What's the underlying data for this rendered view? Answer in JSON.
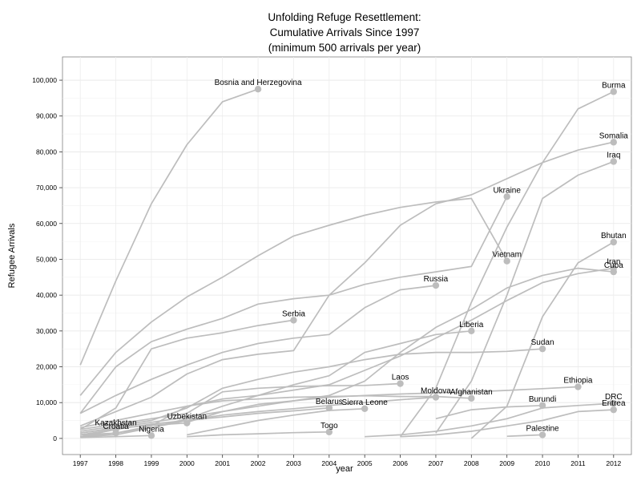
{
  "chart_data": {
    "type": "line",
    "title_lines": [
      "Unfolding Refuge Resettlement:",
      "Cumulative Arrivals Since 1997",
      "(minimum 500 arrivals per year)"
    ],
    "xlabel": "year",
    "ylabel": "Refugee Arrivals",
    "xlim": [
      1996.5,
      2012.5
    ],
    "ylim": [
      -4500,
      106500
    ],
    "x_ticks": [
      1997,
      1998,
      1999,
      2000,
      2001,
      2002,
      2003,
      2004,
      2005,
      2006,
      2007,
      2008,
      2009,
      2010,
      2011,
      2012
    ],
    "y_ticks": [
      0,
      10000,
      20000,
      30000,
      40000,
      50000,
      60000,
      70000,
      80000,
      90000,
      100000
    ],
    "y_tick_labels": [
      "0",
      "10,000",
      "20,000",
      "30,000",
      "40,000",
      "50,000",
      "60,000",
      "70,000",
      "80,000",
      "90,000",
      "100,000"
    ],
    "grid": true,
    "line_color": "#bdbdbd",
    "marker_color": "#bdbdbd",
    "series": [
      {
        "name": "Bosnia and Herzegovina",
        "x": [
          1997,
          1998,
          1999,
          2000,
          2001,
          2002
        ],
        "y": [
          20500,
          44000,
          65500,
          82000,
          94000,
          97500
        ]
      },
      {
        "name": "Burma",
        "x": [
          2006,
          2007,
          2008,
          2009,
          2010,
          2011,
          2012
        ],
        "y": [
          500,
          14000,
          38000,
          59000,
          77000,
          92000,
          96800
        ]
      },
      {
        "name": "Somalia",
        "x": [
          1997,
          1998,
          1999,
          2000,
          2001,
          2002,
          2003,
          2004,
          2005,
          2006,
          2007,
          2008,
          2009,
          2010,
          2011,
          2012
        ],
        "y": [
          3500,
          7500,
          11500,
          18000,
          22000,
          23500,
          24500,
          40000,
          49000,
          59500,
          65500,
          68000,
          72500,
          77000,
          80500,
          82700
        ]
      },
      {
        "name": "Iraq",
        "x": [
          2007,
          2008,
          2009,
          2010,
          2011,
          2012
        ],
        "y": [
          1500,
          16000,
          40000,
          67000,
          73500,
          77300
        ]
      },
      {
        "name": "Ukraine",
        "x": [
          1997,
          1998,
          1999,
          2000,
          2001,
          2002,
          2003,
          2004,
          2005,
          2006,
          2007,
          2008,
          2009
        ],
        "y": [
          7000,
          20000,
          27000,
          30500,
          33500,
          37500,
          39000,
          40000,
          43000,
          45000,
          46500,
          48000,
          67500
        ]
      },
      {
        "name": "Bhutan",
        "x": [
          2008,
          2009,
          2010,
          2011,
          2012
        ],
        "y": [
          0,
          9000,
          34000,
          49000,
          54800
        ]
      },
      {
        "name": "Vietnam",
        "x": [
          1997,
          1998,
          1999,
          2000,
          2001,
          2002,
          2003,
          2004,
          2005,
          2006,
          2007,
          2008,
          2009
        ],
        "y": [
          12000,
          24000,
          32500,
          39500,
          45000,
          51000,
          56500,
          59500,
          62300,
          64500,
          66000,
          67000,
          49500
        ]
      },
      {
        "name": "Iran",
        "x": [
          1997,
          1998,
          1999,
          2000,
          2001,
          2002,
          2003,
          2004,
          2005,
          2006,
          2007,
          2008,
          2009,
          2010,
          2011,
          2012
        ],
        "y": [
          3000,
          5000,
          7000,
          9000,
          11000,
          12000,
          13500,
          15000,
          19000,
          23000,
          28000,
          33000,
          38500,
          43500,
          46000,
          47500
        ]
      },
      {
        "name": "Cuba",
        "x": [
          1997,
          1998,
          1999,
          2000,
          2001,
          2002,
          2003,
          2004,
          2005,
          2006,
          2007,
          2008,
          2009,
          2010,
          2011,
          2012
        ],
        "y": [
          1500,
          3000,
          4500,
          6000,
          7500,
          9000,
          10500,
          12000,
          16000,
          24000,
          31000,
          36000,
          42000,
          45500,
          47500,
          46500
        ]
      },
      {
        "name": "Russia",
        "x": [
          1997,
          1998,
          1999,
          2000,
          2001,
          2002,
          2003,
          2004,
          2005,
          2006,
          2007
        ],
        "y": [
          7000,
          12000,
          16500,
          20500,
          24000,
          26500,
          28000,
          29000,
          36500,
          41500,
          42700
        ]
      },
      {
        "name": "Serbia",
        "x": [
          1997,
          1998,
          1999,
          2000,
          2001,
          2002,
          2003
        ],
        "y": [
          2500,
          8500,
          25000,
          28000,
          29500,
          31500,
          33000
        ]
      },
      {
        "name": "Liberia",
        "x": [
          1997,
          1998,
          1999,
          2000,
          2001,
          2002,
          2003,
          2004,
          2005,
          2006,
          2007,
          2008
        ],
        "y": [
          500,
          1000,
          3000,
          5500,
          9000,
          12000,
          15000,
          17500,
          24000,
          26500,
          29000,
          30000
        ]
      },
      {
        "name": "Sudan",
        "x": [
          1997,
          1998,
          1999,
          2000,
          2001,
          2002,
          2003,
          2004,
          2005,
          2006,
          2007,
          2008,
          2009,
          2010
        ],
        "y": [
          2000,
          3500,
          5000,
          8500,
          14000,
          16500,
          18500,
          20000,
          22000,
          23500,
          24000,
          24000,
          24300,
          25000
        ]
      },
      {
        "name": "Laos",
        "x": [
          1997,
          1998,
          1999,
          2000,
          2001,
          2002,
          2003,
          2004,
          2005,
          2006
        ],
        "y": [
          2500,
          4000,
          5500,
          7000,
          13000,
          14000,
          14500,
          14700,
          14800,
          15300
        ]
      },
      {
        "name": "Ethiopia",
        "x": [
          2000,
          2001,
          2002,
          2003,
          2004,
          2005,
          2006,
          2007,
          2008,
          2009,
          2010,
          2011
        ],
        "y": [
          4500,
          7500,
          9500,
          10500,
          11500,
          12000,
          12400,
          12700,
          13000,
          13400,
          13900,
          14400
        ]
      },
      {
        "name": "Moldova",
        "x": [
          1997,
          1998,
          1999,
          2000,
          2001,
          2002,
          2003,
          2004,
          2005,
          2006,
          2007
        ],
        "y": [
          500,
          1500,
          3000,
          5000,
          6500,
          7500,
          8300,
          9200,
          10000,
          10800,
          11500
        ]
      },
      {
        "name": "Afghanistan",
        "x": [
          1997,
          1998,
          1999,
          2000,
          2001,
          2002,
          2003,
          2004,
          2005,
          2006,
          2007,
          2008
        ],
        "y": [
          500,
          1500,
          3500,
          9000,
          10500,
          11000,
          11500,
          11700,
          11900,
          11700,
          11700,
          11200
        ]
      },
      {
        "name": "Burundi",
        "x": [
          2007,
          2008,
          2009,
          2010
        ],
        "y": [
          5500,
          8000,
          8800,
          9200
        ]
      },
      {
        "name": "DRC",
        "x": [
          2005,
          2006,
          2007,
          2008,
          2009,
          2010,
          2011,
          2012
        ],
        "y": [
          500,
          1000,
          2000,
          3500,
          5500,
          8500,
          9200,
          9800
        ]
      },
      {
        "name": "Eritrea",
        "x": [
          2006,
          2007,
          2008,
          2009,
          2010,
          2011,
          2012
        ],
        "y": [
          500,
          1000,
          2000,
          3500,
          5000,
          7500,
          8000
        ]
      },
      {
        "name": "Belarus",
        "x": [
          1997,
          1998,
          1999,
          2000,
          2001,
          2002,
          2003,
          2004
        ],
        "y": [
          1000,
          2500,
          4000,
          5000,
          6000,
          7000,
          7700,
          8500
        ]
      },
      {
        "name": "Sierra Leone",
        "x": [
          2000,
          2001,
          2002,
          2003,
          2004,
          2005
        ],
        "y": [
          1000,
          3000,
          5000,
          6500,
          7800,
          8300
        ]
      },
      {
        "name": "Uzbekistan",
        "x": [
          1997,
          1998,
          1999,
          2000
        ],
        "y": [
          1500,
          2800,
          3700,
          4300
        ]
      },
      {
        "name": "Kazakhstan",
        "x": [
          1997,
          1998
        ],
        "y": [
          500,
          2500
        ]
      },
      {
        "name": "Croatia",
        "x": [
          1997,
          1998
        ],
        "y": [
          1000,
          1500
        ]
      },
      {
        "name": "Nigeria",
        "x": [
          1997,
          1998,
          1999
        ],
        "y": [
          300,
          500,
          800
        ]
      },
      {
        "name": "Togo",
        "x": [
          2000,
          2001,
          2002,
          2003,
          2004
        ],
        "y": [
          500,
          1000,
          1300,
          1600,
          1800
        ]
      },
      {
        "name": "Palestine",
        "x": [
          2009,
          2010
        ],
        "y": [
          600,
          1000
        ]
      }
    ],
    "labels": [
      {
        "text": "Bosnia and Herzegovina",
        "series": "Bosnia and Herzegovina"
      },
      {
        "text": "Burma",
        "series": "Burma"
      },
      {
        "text": "Somalia",
        "series": "Somalia"
      },
      {
        "text": "Iraq",
        "series": "Iraq"
      },
      {
        "text": "Ukraine",
        "series": "Ukraine"
      },
      {
        "text": "Bhutan",
        "series": "Bhutan"
      },
      {
        "text": "Vietnam",
        "series": "Vietnam"
      },
      {
        "text": "Iran",
        "series": "Iran"
      },
      {
        "text": "Cuba",
        "series": "Cuba"
      },
      {
        "text": "Russia",
        "series": "Russia"
      },
      {
        "text": "Serbia",
        "series": "Serbia"
      },
      {
        "text": "Liberia",
        "series": "Liberia"
      },
      {
        "text": "Sudan",
        "series": "Sudan"
      },
      {
        "text": "Laos",
        "series": "Laos"
      },
      {
        "text": "Ethiopia",
        "series": "Ethiopia"
      },
      {
        "text": "Moldova",
        "series": "Moldova"
      },
      {
        "text": "Afghanistan",
        "series": "Afghanistan"
      },
      {
        "text": "Burundi",
        "series": "Burundi"
      },
      {
        "text": "DRC",
        "series": "DRC"
      },
      {
        "text": "Eritrea",
        "series": "Eritrea"
      },
      {
        "text": "Belarus",
        "series": "Belarus"
      },
      {
        "text": "Sierra Leone",
        "series": "Sierra Leone"
      },
      {
        "text": "Uzbekistan",
        "series": "Uzbekistan"
      },
      {
        "text": "Kazakhstan",
        "series": "Kazakhstan"
      },
      {
        "text": "Croatia",
        "series": "Croatia"
      },
      {
        "text": "Nigeria",
        "series": "Nigeria"
      },
      {
        "text": "Togo",
        "series": "Togo"
      },
      {
        "text": "Palestine",
        "series": "Palestine"
      }
    ]
  }
}
